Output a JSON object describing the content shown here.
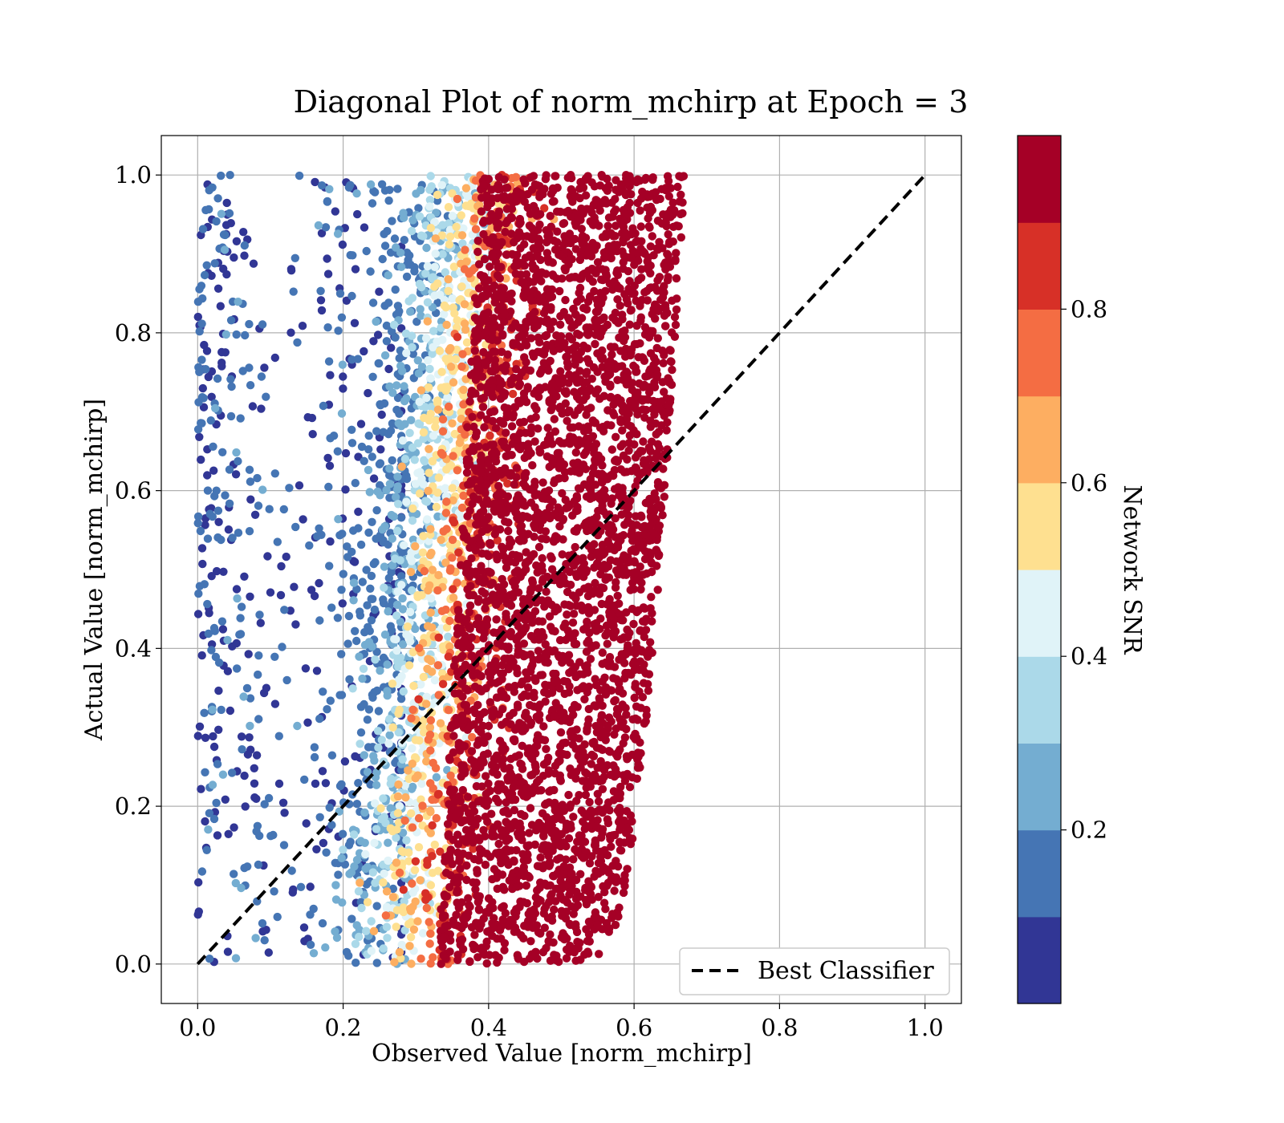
{
  "chart_data": {
    "type": "scatter",
    "title": "Diagonal Plot of norm_mchirp at Epoch = 3",
    "xlabel": "Observed Value [norm_mchirp]",
    "ylabel": "Actual Value [norm_mchirp]",
    "xlim": [
      -0.05,
      1.05
    ],
    "ylim": [
      -0.05,
      1.05
    ],
    "xticks": [
      "0.0",
      "0.2",
      "0.4",
      "0.6",
      "0.8",
      "1.0"
    ],
    "yticks": [
      "0.0",
      "0.2",
      "0.4",
      "0.6",
      "0.8",
      "1.0"
    ],
    "grid": true,
    "legend": {
      "placement": "lower-right",
      "entries": [
        {
          "label": "Best Classifier",
          "style": "dashed",
          "color": "#000000"
        }
      ]
    },
    "reference_line": {
      "label": "Best Classifier",
      "x": [
        0.0,
        1.0
      ],
      "y": [
        0.0,
        1.0
      ]
    },
    "colorbar": {
      "label": "Network SNR",
      "range": [
        0.0,
        1.0
      ],
      "ticks": [
        "0.2",
        "0.4",
        "0.6",
        "0.8"
      ],
      "tick_values": [
        0.2,
        0.4,
        0.6,
        0.8
      ],
      "bins": 10,
      "colors": [
        "#313695",
        "#4575b4",
        "#74add1",
        "#abd9e9",
        "#e0f3f8",
        "#fee090",
        "#fdae61",
        "#f46d43",
        "#d73027",
        "#a50026"
      ]
    },
    "scatter_distribution": {
      "approx_points_shown": 6000,
      "description_bands": [
        {
          "snr": "0.0-0.2",
          "observed_range": [
            0.0,
            0.25
          ],
          "actual_range": [
            0.0,
            0.95
          ]
        },
        {
          "snr": "0.2-0.5",
          "observed_range": [
            0.22,
            0.36
          ],
          "actual_range": [
            0.0,
            0.98
          ]
        },
        {
          "snr": "0.5-0.8",
          "observed_range": [
            0.3,
            0.45
          ],
          "actual_range": [
            0.0,
            1.0
          ]
        },
        {
          "snr": "0.8-1.0",
          "observed_range": [
            0.35,
            0.69
          ],
          "actual_range": [
            0.0,
            1.0
          ]
        }
      ]
    }
  }
}
